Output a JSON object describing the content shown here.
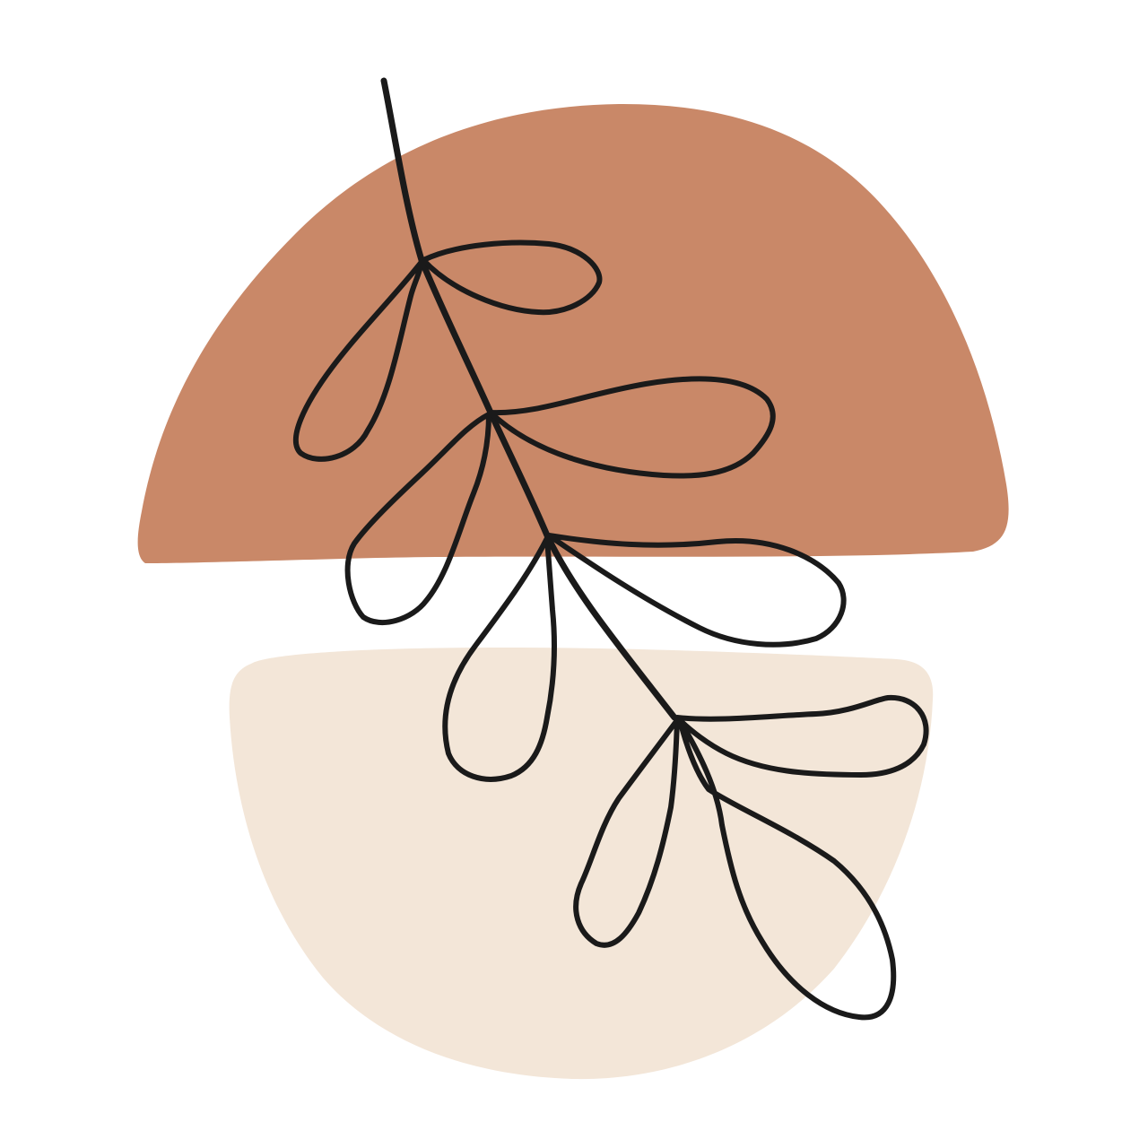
{
  "artwork": {
    "icons": {
      "top_shape": "terracotta-blob-icon",
      "bottom_shape": "cream-blob-icon",
      "branch": "leafy-branch-icon"
    },
    "colors": {
      "background": "#ffffff",
      "top_shape": "#c98868",
      "bottom_shape": "#f3e6d8",
      "line": "#1a1a1a"
    }
  }
}
